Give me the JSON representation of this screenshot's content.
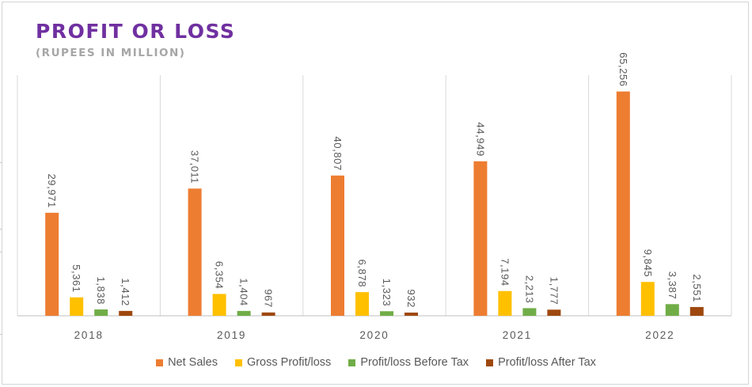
{
  "chart_data": {
    "type": "bar",
    "title": "PROFIT OR LOSS",
    "subtitle": "(RUPEES IN MILLION)",
    "categories": [
      "2018",
      "2019",
      "2020",
      "2021",
      "2022"
    ],
    "series": [
      {
        "name": "Net Sales",
        "color": "#ed7d31",
        "values": [
          29971,
          37011,
          40807,
          44949,
          65256
        ],
        "labels": [
          "29,971",
          "37,011",
          "40,807",
          "44,949",
          "65,256"
        ]
      },
      {
        "name": "Gross Profit/loss",
        "color": "#ffc000",
        "values": [
          5361,
          6354,
          6878,
          7194,
          9845
        ],
        "labels": [
          "5,361",
          "6,354",
          "6,878",
          "7,194",
          "9,845"
        ]
      },
      {
        "name": "Profit/loss Before Tax",
        "color": "#70ad47",
        "values": [
          1838,
          1404,
          1323,
          2213,
          3387
        ],
        "labels": [
          "1,838",
          "1,404",
          "1,323",
          "2,213",
          "3,387"
        ]
      },
      {
        "name": "Profit/loss After Tax",
        "color": "#9e480e",
        "values": [
          1412,
          967,
          932,
          1777,
          2551
        ],
        "labels": [
          "1,412",
          "967",
          "932",
          "1,777",
          "2,551"
        ]
      }
    ],
    "ylim": [
      0,
      70000
    ],
    "grid": "vertical-category-separators",
    "legend": "bottom"
  }
}
